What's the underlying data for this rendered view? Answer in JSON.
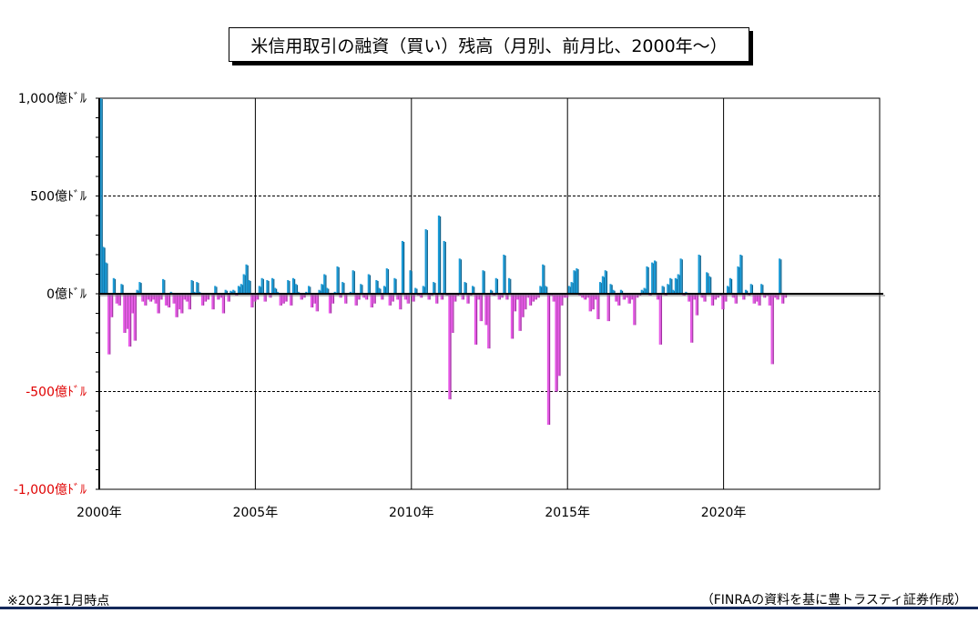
{
  "title": "米信用取引の融資（買い）残高（月別、前月比、2000年～）",
  "footnote_left": "※2023年1月時点",
  "footnote_right": "（FINRAの資料を基に豊トラスティ証券作成）",
  "colors": {
    "positive": "#1a9ad6",
    "negative": "#e65ae6",
    "negative_label": "#e00000",
    "rule": "#14285a"
  },
  "chart_data": {
    "type": "bar",
    "title": "米信用取引の融資（買い）残高（月別、前月比、2000年～）",
    "ylabel": "",
    "xlabel": "",
    "ylim": [
      -1000,
      1000
    ],
    "unit": "億ﾄﾞﾙ",
    "y_ticks": [
      {
        "value": 1000,
        "label": "1,000億ﾄﾞﾙ"
      },
      {
        "value": 500,
        "label": "500億ﾄﾞﾙ"
      },
      {
        "value": 0,
        "label": "0億ﾄﾞﾙ"
      },
      {
        "value": -500,
        "label": "-500億ﾄﾞﾙ"
      },
      {
        "value": -1000,
        "label": "-1,000億ﾄﾞﾙ"
      }
    ],
    "x_ticks": [
      {
        "year": 2000,
        "label": "2000年"
      },
      {
        "year": 2005,
        "label": "2005年"
      },
      {
        "year": 2010,
        "label": "2010年"
      },
      {
        "year": 2015,
        "label": "2015年"
      },
      {
        "year": 2020,
        "label": "2020年"
      }
    ],
    "x_range": [
      "2000-01",
      "2024-12"
    ],
    "grid": true,
    "series_start": "2000-01",
    "values": [
      1000,
      240,
      160,
      -310,
      -120,
      80,
      -50,
      -60,
      50,
      -200,
      -180,
      -270,
      -100,
      -240,
      20,
      60,
      -40,
      -60,
      -30,
      -40,
      -30,
      -50,
      -100,
      -30,
      75,
      -60,
      -70,
      10,
      -50,
      -120,
      -80,
      -100,
      -30,
      -40,
      -80,
      70,
      10,
      60,
      10,
      -60,
      -40,
      -30,
      0,
      -80,
      40,
      -30,
      -20,
      -100,
      20,
      -40,
      15,
      20,
      -10,
      40,
      50,
      100,
      150,
      70,
      -70,
      -40,
      -30,
      40,
      80,
      -40,
      70,
      -20,
      80,
      30,
      10,
      -60,
      -50,
      -40,
      70,
      -60,
      80,
      50,
      10,
      -30,
      -20,
      10,
      40,
      -70,
      -50,
      -90,
      20,
      50,
      100,
      30,
      -100,
      -50,
      10,
      140,
      -20,
      60,
      -50,
      0,
      10,
      120,
      -60,
      -30,
      50,
      -20,
      -30,
      100,
      -70,
      -50,
      70,
      30,
      -30,
      40,
      130,
      -60,
      -40,
      80,
      -30,
      -80,
      270,
      -30,
      -50,
      120,
      -40,
      30,
      -10,
      -20,
      40,
      330,
      -30,
      -10,
      60,
      -50,
      400,
      -30,
      270,
      -10,
      -540,
      -200,
      -40,
      -10,
      180,
      -30,
      60,
      -50,
      -10,
      40,
      -260,
      -30,
      -140,
      120,
      -160,
      -280,
      20,
      -10,
      80,
      -30,
      -20,
      200,
      -30,
      80,
      -230,
      -90,
      -30,
      -190,
      -120,
      -80,
      -20,
      -60,
      -40,
      -30,
      -20,
      40,
      150,
      40,
      -670,
      -10,
      -40,
      -500,
      -420,
      -60,
      -20,
      -20,
      40,
      60,
      120,
      130,
      -10,
      -20,
      -30,
      -20,
      -90,
      -80,
      -30,
      -130,
      60,
      90,
      120,
      -140,
      50,
      20,
      -40,
      -60,
      20,
      -30,
      -20,
      -50,
      -30,
      -160,
      -20,
      -10,
      20,
      30,
      140,
      -10,
      160,
      170,
      -30,
      -260,
      40,
      -10,
      50,
      80,
      20,
      80,
      100,
      180,
      -10,
      10,
      -40,
      -250,
      -30,
      -110,
      200,
      -20,
      -40,
      110,
      90,
      -60,
      -30,
      -20,
      -10,
      -80,
      -40,
      40,
      80,
      -20,
      -50,
      140,
      200,
      -30,
      20,
      -10,
      50,
      -50,
      -40,
      -60,
      50,
      -20,
      -10,
      -60,
      -360,
      -20,
      -30,
      180,
      -50,
      -20
    ]
  }
}
